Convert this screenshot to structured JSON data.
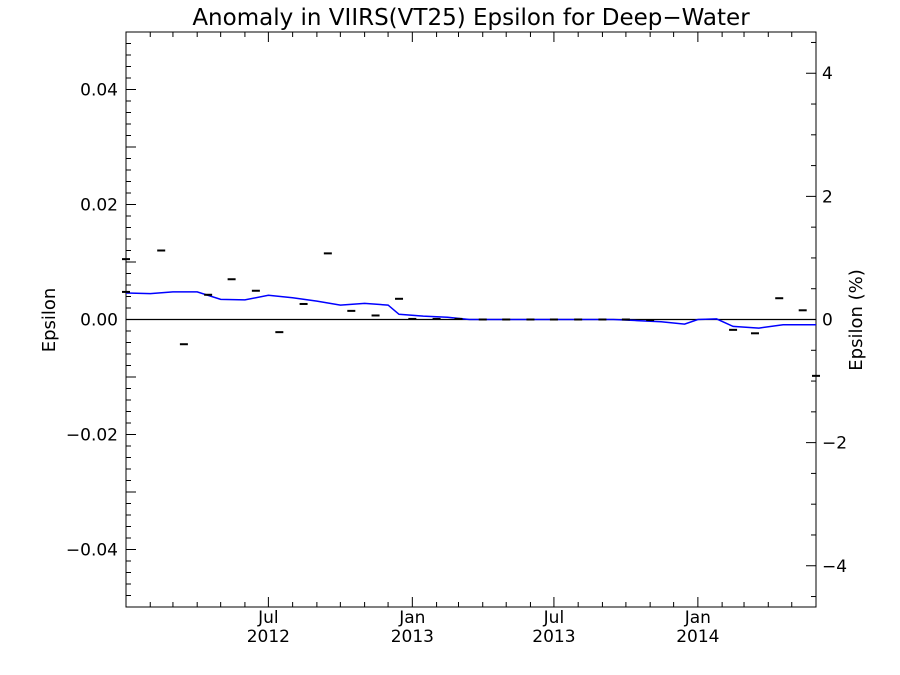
{
  "chart_data": {
    "type": "line",
    "title": "Anomaly in VIIRS(VT25) Epsilon for Deep−Water",
    "ylabel": "Epsilon",
    "ylabel_right": "Epsilon (%)",
    "xlim": [
      "2012-01-01",
      "2014-06-01"
    ],
    "ylim": [
      -0.05,
      0.05
    ],
    "ylim_right": [
      -4.67,
      4.67
    ],
    "grid": false,
    "legend": "none",
    "y_ticks": [
      {
        "value": 0.04,
        "label": "0.04"
      },
      {
        "value": 0.02,
        "label": "0.02"
      },
      {
        "value": 0.0,
        "label": "0.00"
      },
      {
        "value": -0.02,
        "label": "−0.02"
      },
      {
        "value": -0.04,
        "label": "−0.04"
      }
    ],
    "y_ticks_right": [
      {
        "value": 4,
        "label": "4"
      },
      {
        "value": 2,
        "label": "2"
      },
      {
        "value": 0,
        "label": "0"
      },
      {
        "value": -2,
        "label": "−2"
      },
      {
        "value": -4,
        "label": "−4"
      }
    ],
    "x_ticks": [
      {
        "date": "2012-07-01",
        "month": "Jul",
        "year": "2012"
      },
      {
        "date": "2013-01-01",
        "month": "Jan",
        "year": "2013"
      },
      {
        "date": "2013-07-01",
        "month": "Jul",
        "year": "2013"
      },
      {
        "date": "2014-01-01",
        "month": "Jan",
        "year": "2014"
      }
    ],
    "series": [
      {
        "kind": "line",
        "color": "#0000ff",
        "points": [
          {
            "x": "2012-01-01",
            "y": 0.0046
          },
          {
            "x": "2012-02-01",
            "y": 0.0045
          },
          {
            "x": "2012-03-01",
            "y": 0.0048
          },
          {
            "x": "2012-04-01",
            "y": 0.0048
          },
          {
            "x": "2012-05-01",
            "y": 0.0035
          },
          {
            "x": "2012-06-01",
            "y": 0.0034
          },
          {
            "x": "2012-07-01",
            "y": 0.0042
          },
          {
            "x": "2012-08-01",
            "y": 0.0038
          },
          {
            "x": "2012-09-01",
            "y": 0.0032
          },
          {
            "x": "2012-10-01",
            "y": 0.0025
          },
          {
            "x": "2012-11-01",
            "y": 0.0028
          },
          {
            "x": "2012-12-01",
            "y": 0.0025
          },
          {
            "x": "2012-12-15",
            "y": 0.0009
          },
          {
            "x": "2013-01-15",
            "y": 0.0006
          },
          {
            "x": "2013-02-15",
            "y": 0.0004
          },
          {
            "x": "2013-03-15",
            "y": 0.0
          },
          {
            "x": "2013-04-15",
            "y": 0.0
          },
          {
            "x": "2013-05-15",
            "y": 0.0
          },
          {
            "x": "2013-06-15",
            "y": 0.0
          },
          {
            "x": "2013-07-15",
            "y": 0.0
          },
          {
            "x": "2013-08-15",
            "y": 0.0
          },
          {
            "x": "2013-09-15",
            "y": 0.0
          },
          {
            "x": "2013-10-15",
            "y": -0.0002
          },
          {
            "x": "2013-11-15",
            "y": -0.0004
          },
          {
            "x": "2013-12-15",
            "y": -0.0008
          },
          {
            "x": "2014-01-01",
            "y": 0.0
          },
          {
            "x": "2014-01-25",
            "y": 0.0001
          },
          {
            "x": "2014-02-15",
            "y": -0.0012
          },
          {
            "x": "2014-03-20",
            "y": -0.0015
          },
          {
            "x": "2014-04-20",
            "y": -0.0009
          },
          {
            "x": "2014-06-01",
            "y": -0.0009
          }
        ]
      },
      {
        "kind": "marks",
        "color": "#000000",
        "points": [
          {
            "x": "2012-01-01",
            "y": 0.0105
          },
          {
            "x": "2012-01-01",
            "y": 0.0048
          },
          {
            "x": "2012-02-15",
            "y": 0.012
          },
          {
            "x": "2012-03-15",
            "y": -0.0043
          },
          {
            "x": "2012-04-15",
            "y": 0.0043
          },
          {
            "x": "2012-05-15",
            "y": 0.007
          },
          {
            "x": "2012-06-15",
            "y": 0.005
          },
          {
            "x": "2012-07-15",
            "y": -0.0022
          },
          {
            "x": "2012-08-15",
            "y": 0.0027
          },
          {
            "x": "2012-09-15",
            "y": 0.0115
          },
          {
            "x": "2012-10-15",
            "y": 0.0015
          },
          {
            "x": "2012-11-15",
            "y": 0.0007
          },
          {
            "x": "2012-12-15",
            "y": 0.0036
          },
          {
            "x": "2013-01-01",
            "y": 0.0001
          },
          {
            "x": "2013-02-01",
            "y": 0.0001
          },
          {
            "x": "2013-03-01",
            "y": 0.0001
          },
          {
            "x": "2013-04-01",
            "y": 0.0
          },
          {
            "x": "2013-05-01",
            "y": 0.0
          },
          {
            "x": "2013-06-01",
            "y": 0.0
          },
          {
            "x": "2013-07-01",
            "y": 0.0
          },
          {
            "x": "2013-08-01",
            "y": 0.0
          },
          {
            "x": "2013-09-01",
            "y": 0.0
          },
          {
            "x": "2013-10-01",
            "y": 0.0
          },
          {
            "x": "2013-11-01",
            "y": -0.0001
          },
          {
            "x": "2014-02-15",
            "y": -0.0018
          },
          {
            "x": "2014-03-15",
            "y": -0.0024
          },
          {
            "x": "2014-04-15",
            "y": 0.0037
          },
          {
            "x": "2014-05-15",
            "y": 0.0016
          },
          {
            "x": "2014-06-01",
            "y": -0.0098
          }
        ]
      }
    ]
  }
}
